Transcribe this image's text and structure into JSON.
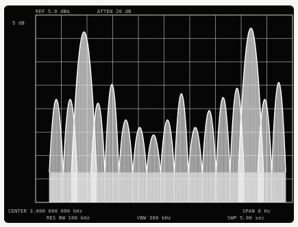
{
  "header": {
    "ref_level": "REF 5.0 dBm",
    "attenuation": "ATTEN 20 dB"
  },
  "scale_label": "5 dB",
  "footer": {
    "center_freq": "CENTER 3.000 000 000 GHz",
    "res_bw": "RES BW 100 kHz",
    "video_bw": "VBW 300 kHz",
    "span": "SPAN 0 Hz",
    "sweep_time": "SWP 5.00 sec"
  },
  "colors": {
    "screen_bg": "#060606",
    "trace": "#f2f2f2",
    "graticule": "#cfcfcf",
    "text": "#d8d8d8"
  },
  "trace": {
    "floor_level": 0.16,
    "lobe_peak_levels": [
      0.55,
      0.55,
      0.91,
      0.53,
      0.63,
      0.44,
      0.4,
      0.36,
      0.44,
      0.58,
      0.4,
      0.49,
      0.56,
      0.61,
      0.93,
      0.55,
      0.64
    ],
    "main_lobe_indices": [
      2,
      14
    ]
  }
}
